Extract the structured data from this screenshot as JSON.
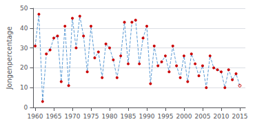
{
  "chart_data": {
    "type": "line",
    "x": [
      1960,
      1961,
      1962,
      1963,
      1964,
      1965,
      1966,
      1967,
      1968,
      1969,
      1970,
      1971,
      1972,
      1973,
      1974,
      1975,
      1976,
      1977,
      1978,
      1979,
      1980,
      1981,
      1982,
      1983,
      1984,
      1985,
      1986,
      1987,
      1988,
      1989,
      1990,
      1991,
      1992,
      1993,
      1994,
      1995,
      1996,
      1997,
      1998,
      1999,
      2000,
      2001,
      2002,
      2003,
      2004,
      2005,
      2006,
      2007,
      2008,
      2009,
      2010,
      2011,
      2012,
      2013,
      2014,
      2015
    ],
    "values": [
      31,
      47,
      3,
      27,
      29,
      35,
      36,
      13,
      41,
      11,
      45,
      30,
      46,
      36,
      18,
      41,
      25,
      28,
      15,
      32,
      30,
      24,
      15,
      26,
      43,
      22,
      43,
      44,
      22,
      35,
      41,
      12,
      31,
      21,
      23,
      26,
      18,
      31,
      21,
      15,
      26,
      13,
      27,
      22,
      16,
      21,
      10,
      26,
      20,
      19,
      18,
      10,
      19,
      14,
      17,
      11
    ],
    "ylabel": "Jongenpercentage",
    "xlim": [
      1959.5,
      2016.5
    ],
    "xticks": [
      1960,
      1965,
      1970,
      1975,
      1980,
      1985,
      1990,
      1995,
      2000,
      2005,
      2010,
      2015
    ],
    "ylim": [
      0,
      50
    ],
    "yticks": [
      0,
      10,
      20,
      30,
      40,
      50
    ],
    "grid": true,
    "color": "#5b9bd5",
    "line_style": "dashed",
    "marker": "circle",
    "colors": [
      "#cc0000",
      "#cc0000",
      "#cc0000",
      "#cc0000",
      "#cc0000",
      "#cc0000",
      "#cc0000",
      "#cc0000",
      "#cc0000",
      "#cc0000",
      "#cc0000",
      "#cc0000",
      "#cc0000",
      "#cc0000",
      "#cc0000",
      "#cc0000",
      "#cc0000",
      "#cc0000",
      "#cc0000",
      "#cc0000",
      "#cc0000",
      "#cc0000",
      "#cc0000",
      "#cc0000",
      "#cc0000",
      "#cc0000",
      "#cc0000",
      "#cc0000",
      "#cc0000",
      "#cc0000",
      "#cc0000",
      "#cc0000",
      "#cc0000",
      "#cc0000",
      "#cc0000",
      "#cc0000",
      "#cc0000",
      "#cc0000",
      "#cc0000",
      "#cc0000",
      "#cc0000",
      "#cc0000",
      "#cc0000",
      "#cc0000",
      "#cc0000",
      "#cc0000",
      "#cc0000",
      "#cc0000",
      "#cc0000",
      "#cc0000",
      "#cc0000",
      "#cc0000",
      "#cc0000",
      "#cc0000",
      "#cc0000",
      "#cc0000"
    ]
  }
}
